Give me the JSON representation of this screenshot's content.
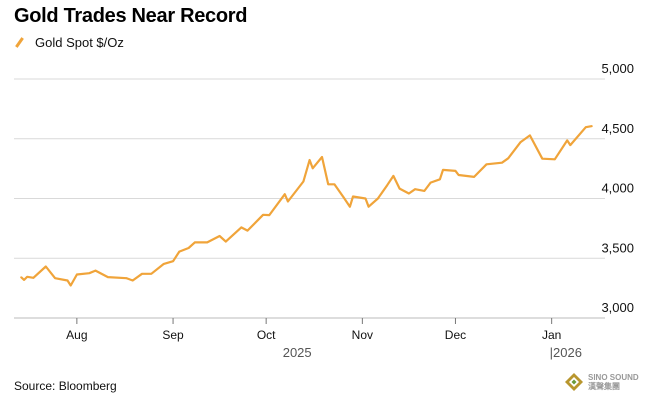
{
  "title": "Gold Trades Near Record",
  "source": "Source: Bloomberg",
  "watermark": {
    "text": "SINO SOUND",
    "subtext": "漢聲集團"
  },
  "colors": {
    "line": "#f0a43a",
    "grid": "#d9d9d9",
    "text": "#111111"
  },
  "chart_data": {
    "type": "line",
    "title": "Gold Trades Near Record",
    "legend": "top-left",
    "grid": true,
    "ylim": [
      3000,
      5000
    ],
    "yticks": [
      5000,
      4500,
      4000,
      3500,
      3000
    ],
    "ytick_labels": [
      "5,000",
      "4,500",
      "4,000",
      "3,500",
      "3,000"
    ],
    "xlim": [
      "2025-07-14",
      "2026-01-14"
    ],
    "xticks": [
      {
        "date": "2025-08-01",
        "label": "Aug"
      },
      {
        "date": "2025-09-01",
        "label": "Sep"
      },
      {
        "date": "2025-10-01",
        "label": "Oct"
      },
      {
        "date": "2025-11-01",
        "label": "Nov"
      },
      {
        "date": "2025-12-01",
        "label": "Dec"
      },
      {
        "date": "2026-01-01",
        "label": "Jan"
      }
    ],
    "year_labels": [
      {
        "date": "2025-10-11",
        "label": "2025"
      },
      {
        "date": "2026-01-01",
        "label": "|2026"
      }
    ],
    "series": [
      {
        "name": "Gold Spot $/Oz",
        "x": [
          "2025-07-14",
          "2025-07-15",
          "2025-07-16",
          "2025-07-18",
          "2025-07-22",
          "2025-07-25",
          "2025-07-29",
          "2025-07-30",
          "2025-08-01",
          "2025-08-05",
          "2025-08-07",
          "2025-08-11",
          "2025-08-17",
          "2025-08-19",
          "2025-08-22",
          "2025-08-25",
          "2025-08-29",
          "2025-09-01",
          "2025-09-03",
          "2025-09-06",
          "2025-09-08",
          "2025-09-12",
          "2025-09-16",
          "2025-09-18",
          "2025-09-23",
          "2025-09-25",
          "2025-09-30",
          "2025-10-02",
          "2025-10-07",
          "2025-10-08",
          "2025-10-13",
          "2025-10-15",
          "2025-10-16",
          "2025-10-19",
          "2025-10-21",
          "2025-10-23",
          "2025-10-26",
          "2025-10-28",
          "2025-10-29",
          "2025-11-02",
          "2025-11-03",
          "2025-11-06",
          "2025-11-09",
          "2025-11-11",
          "2025-11-13",
          "2025-11-16",
          "2025-11-18",
          "2025-11-21",
          "2025-11-23",
          "2025-11-26",
          "2025-11-27",
          "2025-12-01",
          "2025-12-02",
          "2025-12-07",
          "2025-12-11",
          "2025-12-16",
          "2025-12-18",
          "2025-12-22",
          "2025-12-25",
          "2025-12-29",
          "2026-01-02",
          "2026-01-06",
          "2026-01-07",
          "2026-01-12",
          "2026-01-14"
        ],
        "y": [
          3342,
          3319,
          3345,
          3336,
          3431,
          3333,
          3314,
          3272,
          3364,
          3375,
          3397,
          3342,
          3333,
          3314,
          3370,
          3370,
          3453,
          3475,
          3556,
          3586,
          3633,
          3633,
          3686,
          3639,
          3758,
          3731,
          3864,
          3861,
          4036,
          3975,
          4142,
          4322,
          4253,
          4347,
          4119,
          4119,
          4008,
          3931,
          4017,
          4000,
          3931,
          4000,
          4111,
          4189,
          4083,
          4042,
          4078,
          4064,
          4133,
          4161,
          4239,
          4231,
          4197,
          4181,
          4286,
          4300,
          4336,
          4472,
          4528,
          4333,
          4328,
          4486,
          4447,
          4597,
          4606
        ]
      }
    ]
  }
}
